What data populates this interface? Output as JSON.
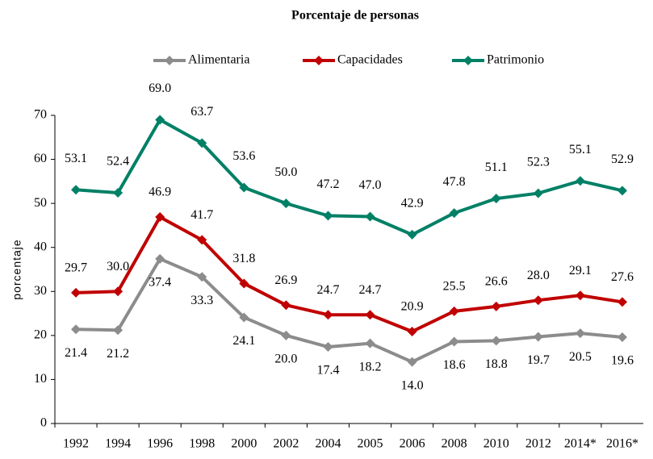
{
  "chart_data": {
    "type": "line",
    "title": "Porcentaje de personas",
    "y_label": "porcentaje",
    "categories": [
      "1992",
      "1994",
      "1996",
      "1998",
      "2000",
      "2002",
      "2004",
      "2005",
      "2006",
      "2008",
      "2010",
      "2012",
      "2014*",
      "2016*"
    ],
    "series": [
      {
        "name": "Alimentaria",
        "color": "#8c8c8c",
        "values": [
          21.4,
          21.2,
          37.4,
          33.3,
          24.1,
          20.0,
          17.4,
          18.2,
          14.0,
          18.6,
          18.8,
          19.7,
          20.5,
          19.6
        ],
        "value_labels": [
          "21.4",
          "21.2",
          "37.4",
          "33.3",
          "24.1",
          "20.0",
          "17.4",
          "18.2",
          "14.0",
          "18.6",
          "18.8",
          "19.7",
          "20.5",
          "19.6"
        ]
      },
      {
        "name": "Capacidades",
        "color": "#c00000",
        "values": [
          29.7,
          30.0,
          46.9,
          41.7,
          31.8,
          26.9,
          24.7,
          24.7,
          20.9,
          25.5,
          26.6,
          28.0,
          29.1,
          27.6
        ],
        "value_labels": [
          "29.7",
          "30.0",
          "46.9",
          "41.7",
          "31.8",
          "26.9",
          "24.7",
          "24.7",
          "20.9",
          "25.5",
          "26.6",
          "28.0",
          "29.1",
          "27.6"
        ]
      },
      {
        "name": "Patrimonio",
        "color": "#008066",
        "values": [
          53.1,
          52.4,
          69.0,
          63.7,
          53.6,
          50.0,
          47.2,
          47.0,
          42.9,
          47.8,
          51.1,
          52.3,
          55.1,
          52.9
        ],
        "value_labels": [
          "53.1",
          "52.4",
          "69.0",
          "63.7",
          "53.6",
          "50.0",
          "47.2",
          "47.0",
          "42.9",
          "47.8",
          "51.1",
          "52.3",
          "55.1",
          "52.9"
        ]
      }
    ],
    "ylim": [
      0,
      70
    ],
    "yticks": [
      0,
      10,
      20,
      30,
      40,
      50,
      60,
      70
    ],
    "grid": false,
    "legend": "top"
  }
}
